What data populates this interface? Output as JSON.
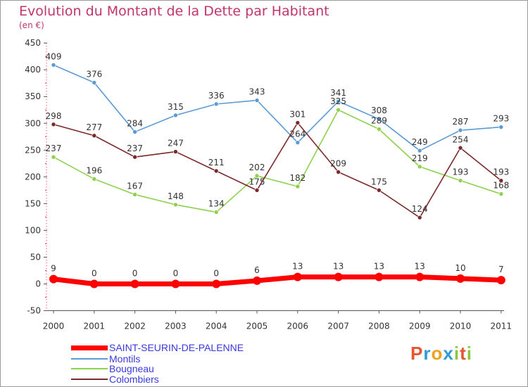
{
  "header": {
    "title": "Evolution du Montant de la Dette par Habitant",
    "subtitle": "(en €)"
  },
  "logo": {
    "letters": [
      "P",
      "r",
      "o",
      "x",
      "i",
      "t",
      "i"
    ],
    "colors": [
      "#e8542d",
      "#2e9bd6",
      "#f0a020",
      "#2e9bd6",
      "#8cc63f",
      "#e8542d",
      "#8cc63f"
    ]
  },
  "chart_data": {
    "type": "line",
    "categories": [
      "2000",
      "2001",
      "2002",
      "2003",
      "2004",
      "2005",
      "2006",
      "2007",
      "2008",
      "2009",
      "2010",
      "2011"
    ],
    "ylim": [
      -50,
      450
    ],
    "yticks": [
      -50,
      0,
      50,
      100,
      150,
      200,
      250,
      300,
      350,
      400,
      450
    ],
    "grid": false,
    "legend_position": "bottom-left",
    "series": [
      {
        "name": "Montils",
        "color": "#5b9bd5",
        "values": [
          409,
          376,
          284,
          315,
          336,
          343,
          264,
          341,
          308,
          249,
          287,
          293
        ]
      },
      {
        "name": "Bougneau",
        "color": "#8ed14f",
        "values": [
          237,
          196,
          167,
          148,
          134,
          202,
          182,
          325,
          289,
          219,
          193,
          168
        ]
      },
      {
        "name": "Colombiers",
        "color": "#7a2a2a",
        "values": [
          298,
          277,
          237,
          247,
          211,
          175,
          301,
          209,
          175,
          124,
          254,
          193
        ]
      },
      {
        "name": "SAINT-SEURIN-DE-PALENNE",
        "color": "#ff0000",
        "values": [
          9,
          0,
          0,
          0,
          0,
          6,
          13,
          13,
          13,
          13,
          10,
          7
        ]
      }
    ]
  }
}
